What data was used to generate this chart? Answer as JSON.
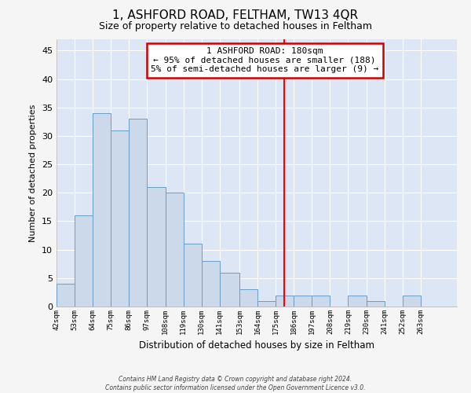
{
  "title": "1, ASHFORD ROAD, FELTHAM, TW13 4QR",
  "subtitle": "Size of property relative to detached houses in Feltham",
  "xlabel": "Distribution of detached houses by size in Feltham",
  "ylabel": "Number of detached properties",
  "bin_labels": [
    "42sqm",
    "53sqm",
    "64sqm",
    "75sqm",
    "86sqm",
    "97sqm",
    "108sqm",
    "119sqm",
    "130sqm",
    "141sqm",
    "153sqm",
    "164sqm",
    "175sqm",
    "186sqm",
    "197sqm",
    "208sqm",
    "219sqm",
    "230sqm",
    "241sqm",
    "252sqm",
    "263sqm"
  ],
  "bin_edges": [
    42,
    53,
    64,
    75,
    86,
    97,
    108,
    119,
    130,
    141,
    153,
    164,
    175,
    186,
    197,
    208,
    219,
    230,
    241,
    252,
    263,
    274
  ],
  "counts": [
    4,
    16,
    34,
    31,
    33,
    21,
    20,
    11,
    8,
    6,
    3,
    1,
    2,
    2,
    2,
    0,
    2,
    1,
    0,
    2,
    0
  ],
  "bar_color": "#ccd9ea",
  "bar_edge_color": "#6b9dc8",
  "bar_linewidth": 0.7,
  "property_line_x": 180,
  "property_line_color": "red",
  "annotation_line1": "1 ASHFORD ROAD: 180sqm",
  "annotation_line2": "← 95% of detached houses are smaller (188)",
  "annotation_line3": "5% of semi-detached houses are larger (9) →",
  "annotation_box_color": "white",
  "annotation_box_edge_color": "#cc0000",
  "ylim": [
    0,
    47
  ],
  "yticks": [
    0,
    5,
    10,
    15,
    20,
    25,
    30,
    35,
    40,
    45
  ],
  "plot_bg_color": "#dce6f5",
  "figure_bg_color": "#f5f5f5",
  "grid_color": "white",
  "footer_line1": "Contains HM Land Registry data © Crown copyright and database right 2024.",
  "footer_line2": "Contains public sector information licensed under the Open Government Licence v3.0."
}
